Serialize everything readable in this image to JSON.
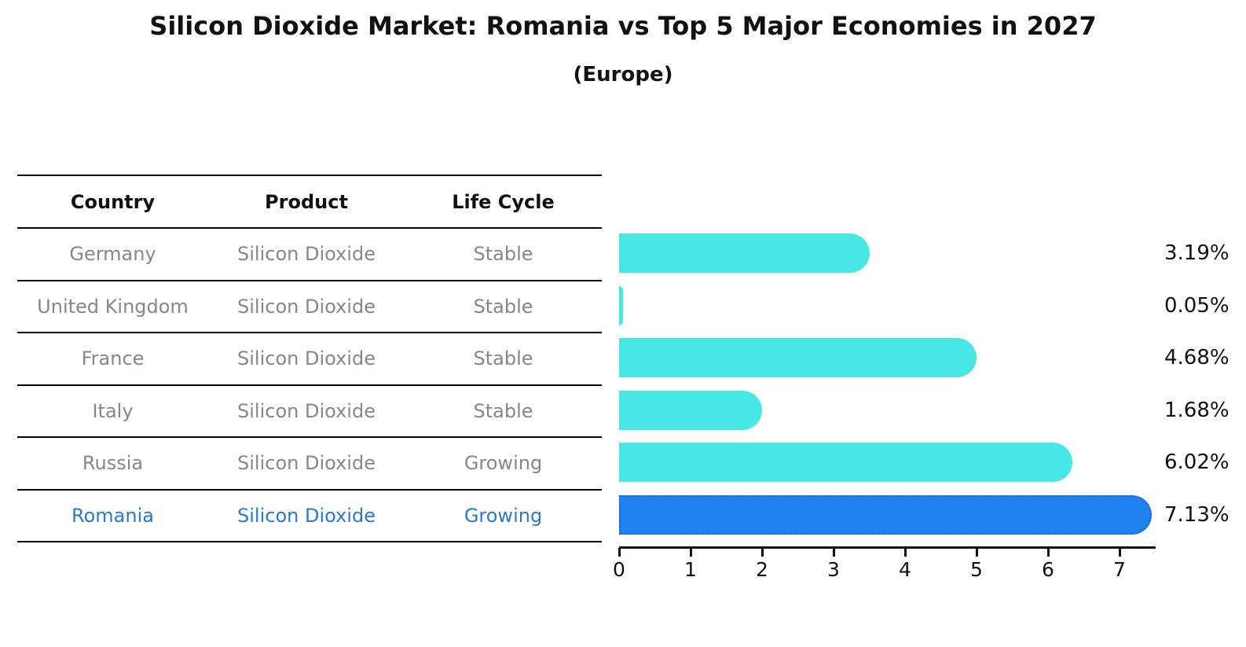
{
  "page": {
    "title": "Silicon Dioxide Market: Romania vs Top 5 Major Economies in 2027",
    "subtitle": "(Europe)"
  },
  "table": {
    "headers": {
      "country": "Country",
      "product": "Product",
      "life_cycle": "Life Cycle"
    },
    "rows": [
      {
        "country": "Germany",
        "product": "Silicon Dioxide",
        "life_cycle": "Stable",
        "value_label": "3.19%"
      },
      {
        "country": "United Kingdom",
        "product": "Silicon Dioxide",
        "life_cycle": "Stable",
        "value_label": "0.05%"
      },
      {
        "country": "France",
        "product": "Silicon Dioxide",
        "life_cycle": "Stable",
        "value_label": "4.68%"
      },
      {
        "country": "Italy",
        "product": "Silicon Dioxide",
        "life_cycle": "Stable",
        "value_label": "1.68%"
      },
      {
        "country": "Russia",
        "product": "Silicon Dioxide",
        "life_cycle": "Growing",
        "value_label": "6.02%"
      },
      {
        "country": "Romania",
        "product": "Silicon Dioxide",
        "life_cycle": "Growing",
        "value_label": "7.13%"
      }
    ]
  },
  "chart_data": {
    "type": "bar",
    "orientation": "horizontal",
    "title": "Silicon Dioxide Market: Romania vs Top 5 Major Economies in 2027",
    "subtitle": "(Europe)",
    "categories": [
      "Germany",
      "United Kingdom",
      "France",
      "Italy",
      "Russia",
      "Romania"
    ],
    "values": [
      3.19,
      0.05,
      4.68,
      1.68,
      6.02,
      7.13
    ],
    "value_labels": [
      "3.19%",
      "0.05%",
      "4.68%",
      "1.68%",
      "6.02%",
      "7.13%"
    ],
    "xlabel": "",
    "ylabel": "",
    "xlim": [
      0,
      7.5
    ],
    "xticks": [
      0,
      1,
      2,
      3,
      4,
      5,
      6,
      7
    ],
    "grid": false,
    "legend": false,
    "highlight_category": "Romania",
    "colors": {
      "bar": "#46E7E4",
      "highlight_bar": "#1E82F0",
      "highlight_border": "#1566CF",
      "row_text": "#878787",
      "highlight_text": "#2878D6",
      "axis": "#111111"
    }
  }
}
